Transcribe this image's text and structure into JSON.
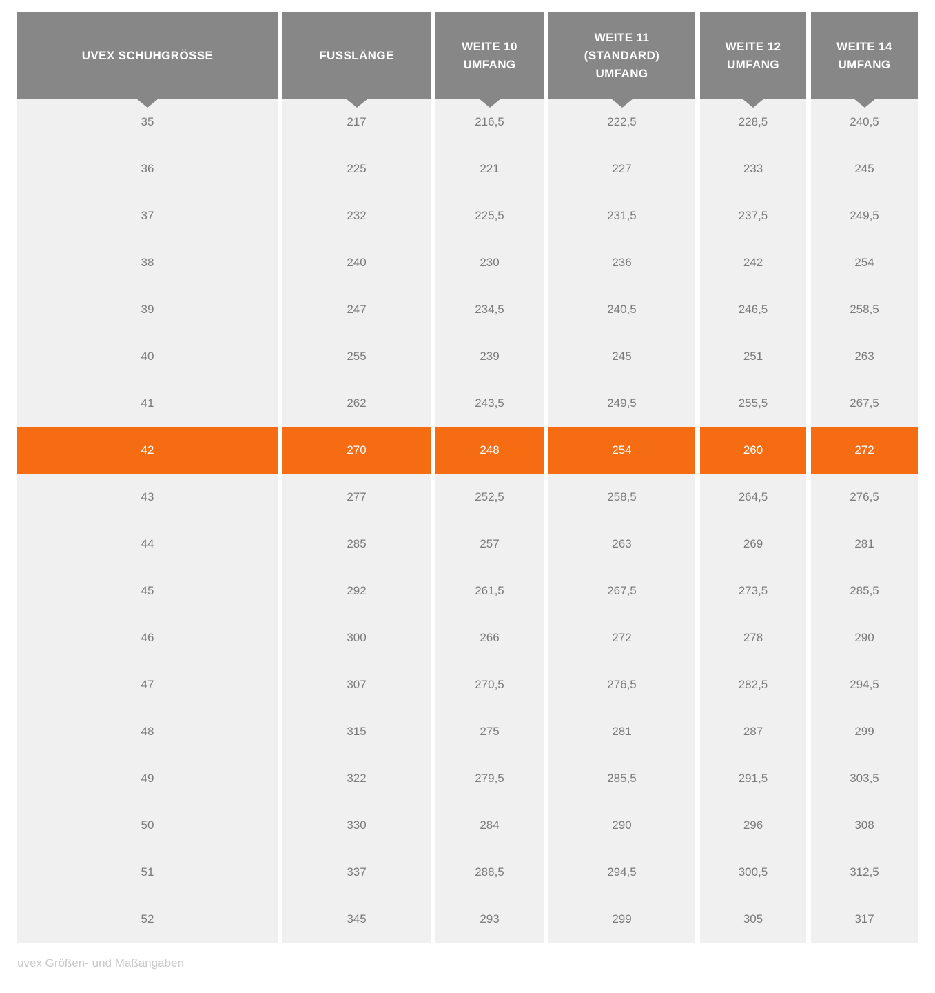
{
  "chart_data": {
    "type": "table",
    "columns": [
      {
        "id": "uvex-schuhgroesse",
        "label": "UVEX SCHUHGRÖSSE",
        "display": "UVEX SCHUHGRÖSSE"
      },
      {
        "id": "fusslaenge",
        "label": "FUSSLÄNGE",
        "display": "FUSSLÄNGE"
      },
      {
        "id": "weite-10-umfang",
        "label": "WEITE 10 UMFANG",
        "display": "WEITE 10\nUMFANG"
      },
      {
        "id": "weite-11-standard-umfang",
        "label": "WEITE 11 (STANDARD) UMFANG",
        "display": "WEITE 11\n(STANDARD)\nUMFANG"
      },
      {
        "id": "weite-12-umfang",
        "label": "WEITE 12 UMFANG",
        "display": "WEITE 12\nUMFANG"
      },
      {
        "id": "weite-14-umfang",
        "label": "WEITE 14 UMFANG",
        "display": "WEITE 14\nUMFANG"
      }
    ],
    "rows": [
      [
        "35",
        "217",
        "216,5",
        "222,5",
        "228,5",
        "240,5"
      ],
      [
        "36",
        "225",
        "221",
        "227",
        "233",
        "245"
      ],
      [
        "37",
        "232",
        "225,5",
        "231,5",
        "237,5",
        "249,5"
      ],
      [
        "38",
        "240",
        "230",
        "236",
        "242",
        "254"
      ],
      [
        "39",
        "247",
        "234,5",
        "240,5",
        "246,5",
        "258,5"
      ],
      [
        "40",
        "255",
        "239",
        "245",
        "251",
        "263"
      ],
      [
        "41",
        "262",
        "243,5",
        "249,5",
        "255,5",
        "267,5"
      ],
      [
        "42",
        "270",
        "248",
        "254",
        "260",
        "272"
      ],
      [
        "43",
        "277",
        "252,5",
        "258,5",
        "264,5",
        "276,5"
      ],
      [
        "44",
        "285",
        "257",
        "263",
        "269",
        "281"
      ],
      [
        "45",
        "292",
        "261,5",
        "267,5",
        "273,5",
        "285,5"
      ],
      [
        "46",
        "300",
        "266",
        "272",
        "278",
        "290"
      ],
      [
        "47",
        "307",
        "270,5",
        "276,5",
        "282,5",
        "294,5"
      ],
      [
        "48",
        "315",
        "275",
        "281",
        "287",
        "299"
      ],
      [
        "49",
        "322",
        "279,5",
        "285,5",
        "291,5",
        "303,5"
      ],
      [
        "50",
        "330",
        "284",
        "290",
        "296",
        "308"
      ],
      [
        "51",
        "337",
        "288,5",
        "294,5",
        "300,5",
        "312,5"
      ],
      [
        "52",
        "345",
        "293",
        "299",
        "305",
        "317"
      ]
    ],
    "highlighted_row": "42",
    "title": "",
    "caption": "uvex Größen- und Maßangaben"
  },
  "caption": "uvex Größen- und Maßangaben",
  "colors": {
    "page_bg": "#ffffff",
    "header_bg": "#878787",
    "header_text": "#ffffff",
    "row_bg": "#f0f0f0",
    "row_text": "#7b7b7b",
    "highlight_bg": "#f66c12",
    "highlight_text": "#ffffff",
    "caption_text": "#c9c9c9"
  }
}
